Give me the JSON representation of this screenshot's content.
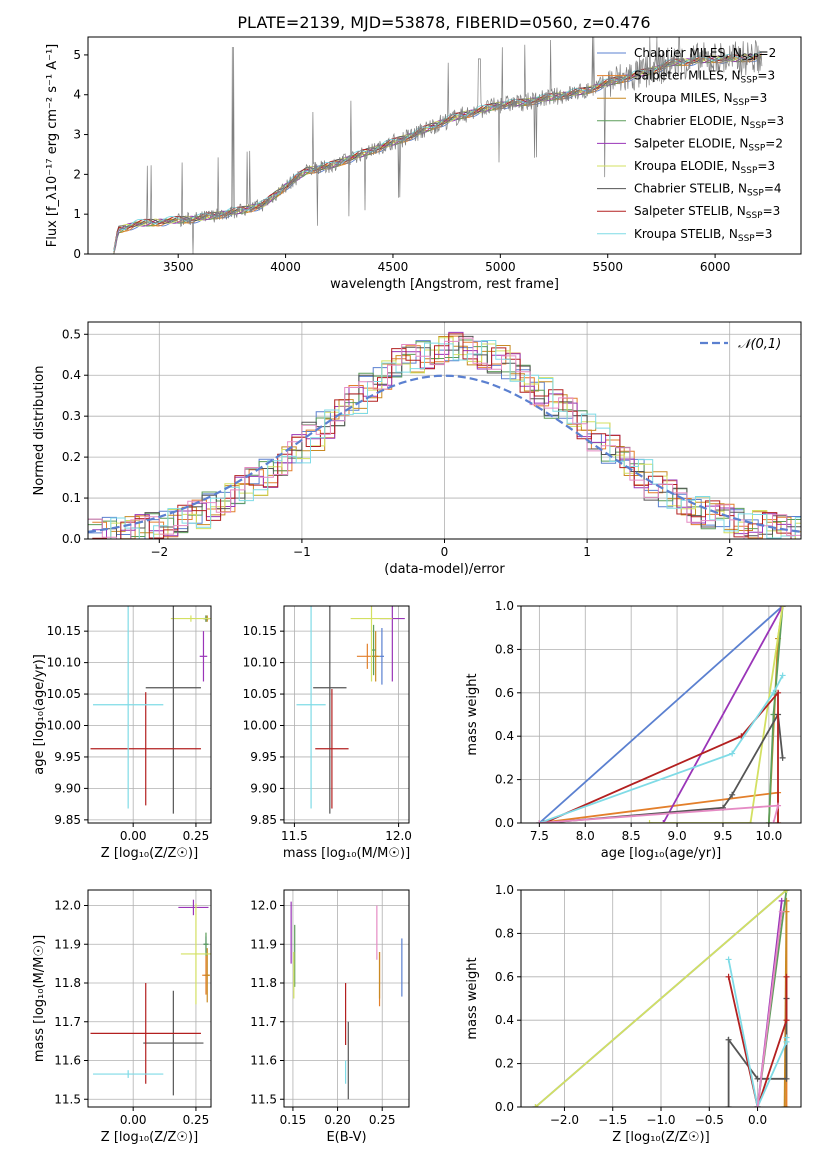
{
  "figure": {
    "title": "PLATE=2139, MJD=53878, FIBERID=0560, z=0.476"
  },
  "models": [
    {
      "name": "Chabrier MILES",
      "nssp": "2",
      "color": "#5b80d0"
    },
    {
      "name": "Salpeter MILES",
      "nssp": "3",
      "color": "#e37f2b"
    },
    {
      "name": "Kroupa MILES",
      "nssp": "3",
      "color": "#c98a23"
    },
    {
      "name": "Chabrier ELODIE",
      "nssp": "3",
      "color": "#5d9e5a"
    },
    {
      "name": "Salpeter ELODIE",
      "nssp": "2",
      "color": "#9a35b8"
    },
    {
      "name": "Kroupa ELODIE",
      "nssp": "3",
      "color": "#d3e062"
    },
    {
      "name": "Chabrier STELIB",
      "nssp": "4",
      "color": "#555555"
    },
    {
      "name": "Salpeter STELIB",
      "nssp": "3",
      "color": "#b32020"
    },
    {
      "name": "Kroupa STELIB",
      "nssp": "3",
      "color": "#7fdbe6"
    }
  ],
  "chart_data": [
    {
      "id": "spectrum",
      "type": "line",
      "xlabel": "wavelength [Angstrom, rest frame]",
      "ylabel": "Flux [f_λ10⁻¹⁷ erg cm⁻² s⁻¹ A⁻¹]",
      "xlim": [
        3080,
        6400
      ],
      "ylim": [
        0,
        5.45
      ],
      "xticks": [
        3500,
        4000,
        4500,
        5000,
        5500,
        6000
      ],
      "yticks": [
        0,
        1,
        2,
        3,
        4,
        5
      ],
      "legend_location": "right",
      "data_color": "#808080",
      "continuum": {
        "x": [
          3200,
          3220,
          3300,
          3400,
          3500,
          3600,
          3700,
          3800,
          3900,
          4000,
          4100,
          4200,
          4300,
          4400,
          4500,
          4600,
          4700,
          4800,
          4900,
          5000,
          5100,
          5200,
          5300,
          5400,
          5500,
          5600,
          5700,
          5800,
          5900,
          6000,
          6100,
          6200
        ],
        "y": [
          0,
          0.6,
          0.75,
          0.8,
          0.85,
          0.9,
          1.0,
          1.1,
          1.25,
          1.7,
          2.1,
          2.2,
          2.4,
          2.6,
          2.8,
          3.0,
          3.25,
          3.45,
          3.6,
          3.75,
          3.8,
          3.9,
          4.0,
          4.1,
          4.3,
          4.45,
          4.6,
          4.8,
          4.85,
          4.9,
          4.9,
          4.95
        ]
      }
    },
    {
      "id": "residuals",
      "type": "histogram",
      "xlabel": "(data-model)/error",
      "ylabel": "Normed distribution",
      "xlim": [
        -2.5,
        2.5
      ],
      "ylim": [
        0,
        0.53
      ],
      "xticks": [
        -2,
        -1,
        0,
        1,
        2
      ],
      "yticks": [
        0.0,
        0.1,
        0.2,
        0.3,
        0.4,
        0.5
      ],
      "grid": true,
      "legend_location": "top-right",
      "reference_curve": {
        "label": "𝒩(0,1)",
        "mu": 0,
        "sigma": 1,
        "color": "#5b80d0",
        "style": "dashed"
      },
      "bin_width": 0.1,
      "base_series": [
        0.015,
        0.018,
        0.02,
        0.025,
        0.03,
        0.04,
        0.05,
        0.06,
        0.08,
        0.1,
        0.12,
        0.14,
        0.16,
        0.19,
        0.22,
        0.25,
        0.28,
        0.31,
        0.34,
        0.37,
        0.4,
        0.43,
        0.44,
        0.45,
        0.46,
        0.47,
        0.46,
        0.45,
        0.44,
        0.42,
        0.39,
        0.36,
        0.33,
        0.31,
        0.28,
        0.25,
        0.22,
        0.19,
        0.16,
        0.13,
        0.11,
        0.09,
        0.07,
        0.06,
        0.05,
        0.04,
        0.035,
        0.03,
        0.025,
        0.02
      ]
    },
    {
      "id": "age-vs-z",
      "type": "scatter",
      "xlabel": "Z [log₁₀(Z/Z☉)]",
      "ylabel": "age [log₁₀(age/yr)]",
      "xlim": [
        -0.18,
        0.31
      ],
      "ylim": [
        9.845,
        10.19
      ],
      "xticks": [
        0.0,
        0.25
      ],
      "yticks": [
        9.85,
        9.9,
        9.95,
        10.0,
        10.05,
        10.1,
        10.15
      ],
      "grid": true,
      "points": [
        {
          "model": 0,
          "x": 0.29,
          "y": 10.17,
          "xerr": 0.01,
          "yerr": 0.005
        },
        {
          "model": 1,
          "x": 0.29,
          "y": 10.17,
          "xerr": 0.01,
          "yerr": 0.005
        },
        {
          "model": 2,
          "x": 0.295,
          "y": 10.17,
          "xerr": 0.01,
          "yerr": 0.005
        },
        {
          "model": 3,
          "x": 0.29,
          "y": 10.17,
          "xerr": 0.01,
          "yerr": 0.005
        },
        {
          "model": 4,
          "x": 0.28,
          "y": 10.11,
          "xerr": 0.015,
          "yerr": 0.04
        },
        {
          "model": 5,
          "x": 0.23,
          "y": 10.17,
          "xerr": 0.08,
          "yerr": 0.005
        },
        {
          "model": 6,
          "x": 0.16,
          "y": 10.06,
          "xerr": 0.11,
          "yerr": 0.2
        },
        {
          "model": 7,
          "x": 0.05,
          "y": 9.963,
          "xerr": 0.22,
          "yerr": 0.09
        },
        {
          "model": 8,
          "x": -0.02,
          "y": 10.033,
          "xerr": 0.14,
          "yerr": 0.165
        }
      ]
    },
    {
      "id": "age-vs-mass",
      "type": "scatter",
      "xlabel": "mass [log₁₀(M/M☉)]",
      "ylabel": "",
      "xlim": [
        11.45,
        12.05
      ],
      "ylim": [
        9.845,
        10.19
      ],
      "xticks": [
        11.5,
        12.0
      ],
      "yticks": [
        9.85,
        9.9,
        9.95,
        10.0,
        10.05,
        10.1,
        10.15
      ],
      "grid": true,
      "points": [
        {
          "model": 0,
          "x": 11.92,
          "y": 10.11,
          "xerr": 0.01,
          "yerr": 0.045
        },
        {
          "model": 1,
          "x": 11.85,
          "y": 10.11,
          "xerr": 0.05,
          "yerr": 0.02
        },
        {
          "model": 2,
          "x": 11.89,
          "y": 10.11,
          "xerr": 0.02,
          "yerr": 0.04
        },
        {
          "model": 3,
          "x": 11.88,
          "y": 10.12,
          "xerr": 0.01,
          "yerr": 0.04
        },
        {
          "model": 4,
          "x": 11.97,
          "y": 10.17,
          "xerr": 0.06,
          "yerr": 0.1
        },
        {
          "model": 5,
          "x": 11.87,
          "y": 10.17,
          "xerr": 0.1,
          "yerr": 0.1
        },
        {
          "model": 6,
          "x": 11.67,
          "y": 10.06,
          "xerr": 0.08,
          "yerr": 0.2
        },
        {
          "model": 7,
          "x": 11.68,
          "y": 9.963,
          "xerr": 0.08,
          "yerr": 0.095
        },
        {
          "model": 8,
          "x": 11.58,
          "y": 10.033,
          "xerr": 0.07,
          "yerr": 0.165
        }
      ]
    },
    {
      "id": "massweight-vs-age",
      "type": "line",
      "xlabel": "age [log₁₀(age/yr)]",
      "ylabel": "mass weight",
      "xlim": [
        7.3,
        10.35
      ],
      "ylim": [
        0,
        1.0
      ],
      "xticks": [
        7.5,
        8.0,
        8.5,
        9.0,
        9.5,
        10.0
      ],
      "yticks": [
        0.0,
        0.2,
        0.4,
        0.6,
        0.8,
        1.0
      ],
      "grid": true,
      "series": [
        {
          "model": 0,
          "x": [
            7.5,
            10.15
          ],
          "y": [
            0.0,
            1.0
          ]
        },
        {
          "model": 1,
          "x": [
            7.5,
            10.1,
            10.1
          ],
          "y": [
            0.0,
            0.14,
            0.0
          ]
        },
        {
          "model": 2,
          "x": [
            10.0,
            10.1,
            10.15
          ],
          "y": [
            0.0,
            0.85,
            1.0
          ]
        },
        {
          "model": 3,
          "x": [
            10.0,
            10.05,
            10.15
          ],
          "y": [
            0.0,
            0.5,
            1.0
          ]
        },
        {
          "model": 4,
          "x": [
            8.85,
            10.15
          ],
          "y": [
            0.0,
            1.0
          ]
        },
        {
          "model": 5,
          "x": [
            8.7,
            9.8,
            10.15
          ],
          "y": [
            0.0,
            0.0,
            1.0
          ]
        },
        {
          "model": 6,
          "x": [
            7.55,
            9.5,
            9.6,
            10.1,
            10.15
          ],
          "y": [
            0.0,
            0.07,
            0.13,
            0.5,
            0.3
          ]
        },
        {
          "model": 7,
          "x": [
            7.55,
            9.7,
            10.1,
            10.1
          ],
          "y": [
            0.0,
            0.4,
            0.6,
            0.0
          ]
        },
        {
          "model": 8,
          "x": [
            7.5,
            9.6,
            10.05,
            10.15
          ],
          "y": [
            0.0,
            0.32,
            0.6,
            0.68
          ]
        },
        {
          "model": 9,
          "x": [
            7.5,
            10.1,
            10.05
          ],
          "y": [
            0.0,
            0.08,
            0.0
          ]
        }
      ]
    },
    {
      "id": "mass-vs-z",
      "type": "scatter",
      "xlabel": "Z [log₁₀(Z/Z☉)]",
      "ylabel": "mass [log₁₀(M/M☉)]",
      "xlim": [
        -0.18,
        0.31
      ],
      "ylim": [
        11.48,
        12.04
      ],
      "xticks": [
        0.0,
        0.25
      ],
      "yticks": [
        11.5,
        11.6,
        11.7,
        11.8,
        11.9,
        12.0
      ],
      "grid": true,
      "points": [
        {
          "model": 0,
          "x": 0.29,
          "y": 11.9,
          "xerr": 0.01,
          "yerr": 0.02
        },
        {
          "model": 1,
          "x": 0.29,
          "y": 11.82,
          "xerr": 0.015,
          "yerr": 0.05
        },
        {
          "model": 2,
          "x": 0.295,
          "y": 11.82,
          "xerr": 0.01,
          "yerr": 0.07
        },
        {
          "model": 3,
          "x": 0.29,
          "y": 11.9,
          "xerr": 0.01,
          "yerr": 0.03
        },
        {
          "model": 4,
          "x": 0.24,
          "y": 11.995,
          "xerr": 0.06,
          "yerr": 0.02
        },
        {
          "model": 5,
          "x": 0.25,
          "y": 11.875,
          "xerr": 0.06,
          "yerr": 0.13
        },
        {
          "model": 6,
          "x": 0.16,
          "y": 11.645,
          "xerr": 0.12,
          "yerr": 0.135
        },
        {
          "model": 7,
          "x": 0.05,
          "y": 11.67,
          "xerr": 0.22,
          "yerr": 0.13
        },
        {
          "model": 8,
          "x": -0.02,
          "y": 11.565,
          "xerr": 0.14,
          "yerr": 0.01
        }
      ]
    },
    {
      "id": "mass-vs-ebv",
      "type": "scatter",
      "xlabel": "E(B-V)",
      "ylabel": "",
      "xlim": [
        0.14,
        0.28
      ],
      "ylim": [
        11.48,
        12.04
      ],
      "xticks": [
        0.15,
        0.2,
        0.25
      ],
      "yticks": [
        11.5,
        11.6,
        11.7,
        11.8,
        11.9,
        12.0
      ],
      "grid": true,
      "points": [
        {
          "model": 0,
          "x": 0.272,
          "y": 11.84,
          "xerr": 0.0,
          "yerr": 0.075
        },
        {
          "model": 1,
          "x": 0.247,
          "y": 11.81,
          "xerr": 0.0,
          "yerr": 0.07
        },
        {
          "model": 2,
          "x": 0.247,
          "y": 11.82,
          "xerr": 0.0,
          "yerr": 0.06
        },
        {
          "model": 3,
          "x": 0.152,
          "y": 11.87,
          "xerr": 0.0,
          "yerr": 0.08
        },
        {
          "model": 4,
          "x": 0.148,
          "y": 11.93,
          "xerr": 0.0,
          "yerr": 0.08
        },
        {
          "model": 5,
          "x": 0.151,
          "y": 11.82,
          "xerr": 0.0,
          "yerr": 0.06
        },
        {
          "model": 6,
          "x": 0.212,
          "y": 11.6,
          "xerr": 0.0,
          "yerr": 0.1
        },
        {
          "model": 7,
          "x": 0.209,
          "y": 11.72,
          "xerr": 0.0,
          "yerr": 0.08
        },
        {
          "model": 8,
          "x": 0.209,
          "y": 11.57,
          "xerr": 0.0,
          "yerr": 0.03
        },
        {
          "model": 9,
          "x": 0.244,
          "y": 11.93,
          "xerr": 0.0,
          "yerr": 0.07
        }
      ]
    },
    {
      "id": "massweight-vs-z",
      "type": "line",
      "xlabel": "Z [log₁₀(Z/Z☉)]",
      "ylabel": "mass weight",
      "xlim": [
        -2.45,
        0.45
      ],
      "ylim": [
        0,
        1.0
      ],
      "xticks": [
        -2.0,
        -1.5,
        -1.0,
        -0.5,
        0.0
      ],
      "yticks": [
        0.0,
        0.2,
        0.4,
        0.6,
        0.8,
        1.0
      ],
      "grid": true,
      "series": [
        {
          "model": 0,
          "x": [
            -2.3,
            0.3
          ],
          "y": [
            0.0,
            1.0
          ]
        },
        {
          "model": 1,
          "x": [
            0.3,
            0.3
          ],
          "y": [
            0.0,
            0.9
          ]
        },
        {
          "model": 2,
          "x": [
            0.28,
            0.3
          ],
          "y": [
            0.0,
            0.95
          ]
        },
        {
          "model": 3,
          "x": [
            0.0,
            0.3
          ],
          "y": [
            0.0,
            1.0
          ]
        },
        {
          "model": 4,
          "x": [
            0.0,
            0.25
          ],
          "y": [
            0.0,
            0.95
          ]
        },
        {
          "model": 5,
          "x": [
            -2.3,
            0.3
          ],
          "y": [
            0.0,
            1.0
          ]
        },
        {
          "model": 6,
          "x": [
            -0.3,
            -0.3,
            0.0,
            0.3,
            0.3
          ],
          "y": [
            0.0,
            0.31,
            0.13,
            0.13,
            0.5
          ]
        },
        {
          "model": 7,
          "x": [
            -0.3,
            0.0,
            0.3,
            0.3
          ],
          "y": [
            0.6,
            0.0,
            0.4,
            0.6
          ]
        },
        {
          "model": 8,
          "x": [
            -0.3,
            0.0,
            0.3,
            0.3
          ],
          "y": [
            0.68,
            0.0,
            0.3,
            0.32
          ]
        },
        {
          "model": 9,
          "x": [
            0.0,
            0.25
          ],
          "y": [
            0.0,
            0.9
          ]
        }
      ]
    }
  ]
}
